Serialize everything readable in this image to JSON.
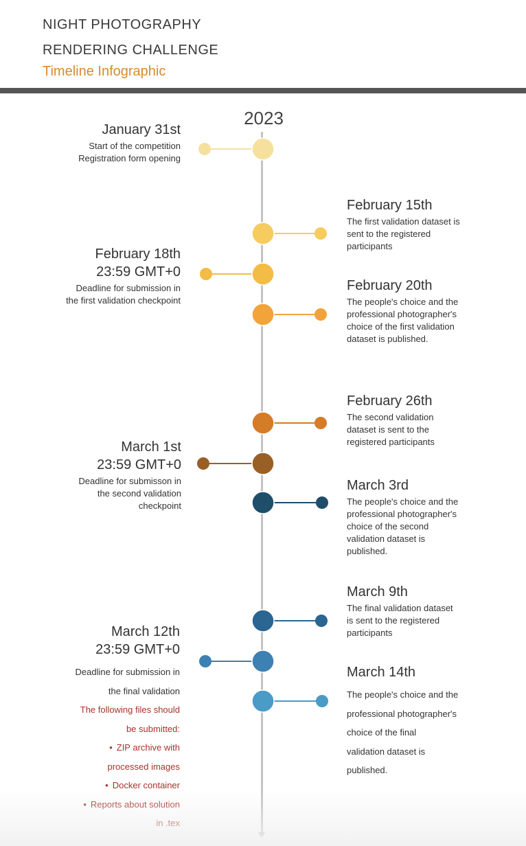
{
  "header": {
    "title": "NIGHT PHOTOGRAPHY RENDERING CHALLENGE",
    "subtitle": "Timeline Infographic"
  },
  "timeline": {
    "year": "2023",
    "events": [
      {
        "date": "January 31st",
        "desc": [
          "Start of the competition",
          "Registration form opening"
        ],
        "color": "#f5e19d"
      },
      {
        "date": "February 15th",
        "desc": [
          "The first validation dataset is",
          "sent to the registered",
          "participants"
        ],
        "color": "#f6cc5e"
      },
      {
        "date": "February 18th",
        "time": "23:59 GMT+0",
        "desc": [
          "Deadline for submission in",
          "the first validation checkpoint"
        ],
        "color": "#f3bc45"
      },
      {
        "date": "February 20th",
        "desc": [
          "The people's choice and the",
          "professional photographer's",
          "choice of the first validation",
          "dataset is published."
        ],
        "color": "#f2a33a"
      },
      {
        "date": "February 26th",
        "desc": [
          "The second validation",
          "dataset is sent to the",
          "registered participants"
        ],
        "color": "#d47c28"
      },
      {
        "date": "March 1st",
        "time": "23:59 GMT+0",
        "desc": [
          "Deadline for submisson in",
          "the second validation",
          "checkpoint"
        ],
        "color": "#9a5f24"
      },
      {
        "date": "March 3rd",
        "desc": [
          "The people's choice and the",
          "professional photographer's",
          "choice of the second",
          "validation dataset is",
          "published."
        ],
        "color": "#1f4e6b"
      },
      {
        "date": "March 9th",
        "desc": [
          "The final validation dataset",
          "is sent to the registered",
          "participants"
        ],
        "color": "#2b6591"
      },
      {
        "date": "March 12th",
        "time": "23:59 GMT+0",
        "desc": [
          "Deadline for submission in",
          "the final validation"
        ],
        "files_intro": [
          "The following files should",
          "be submitted:"
        ],
        "files": [
          [
            "ZIP archive with",
            "processed images"
          ],
          [
            "Docker container"
          ],
          [
            "Reports about solution",
            "in .tex"
          ]
        ],
        "color": "#3d80b2"
      },
      {
        "date": "March 14th",
        "desc": [
          "The people's choice and the",
          "professional photographer's",
          "choice of the final",
          "validation dataset is",
          "published."
        ],
        "color": "#4a9bc6"
      }
    ]
  }
}
